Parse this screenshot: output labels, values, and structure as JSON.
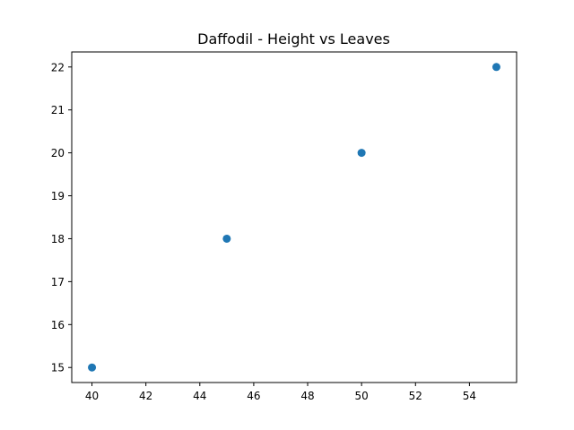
{
  "chart_data": {
    "type": "scatter",
    "title": "Daffodil - Height vs Leaves",
    "xlabel": "",
    "ylabel": "",
    "x": [
      40,
      45,
      50,
      55
    ],
    "y": [
      15,
      18,
      20,
      22
    ],
    "xlim": [
      39.25,
      55.75
    ],
    "ylim": [
      14.65,
      22.35
    ],
    "xticks": [
      40,
      42,
      44,
      46,
      48,
      50,
      52,
      54
    ],
    "yticks": [
      15,
      16,
      17,
      18,
      19,
      20,
      21,
      22
    ],
    "grid": false,
    "marker_color": "#1f77b4"
  }
}
